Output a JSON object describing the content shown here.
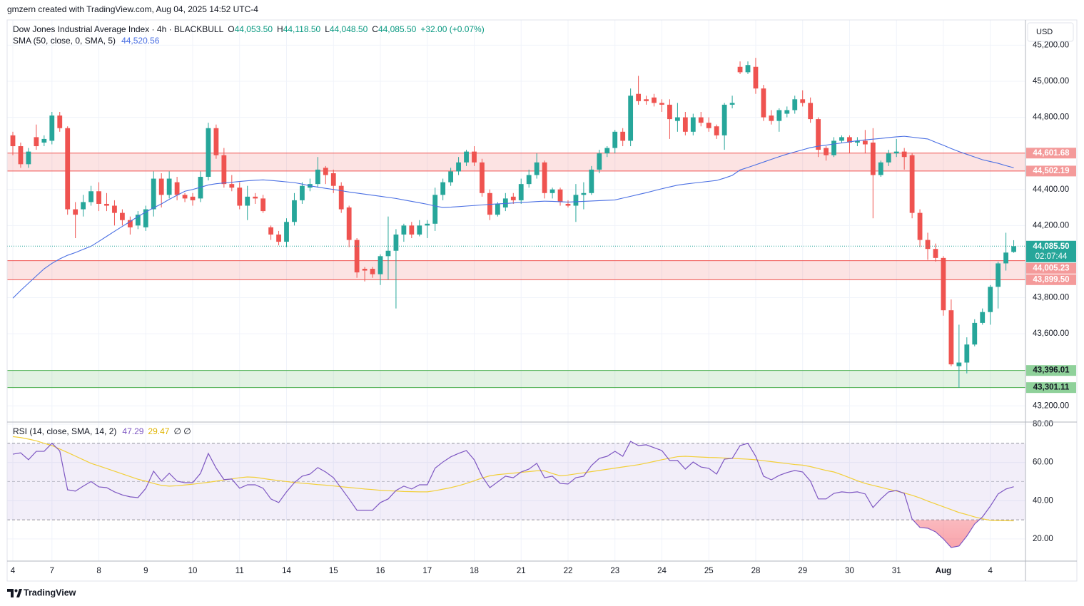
{
  "header": {
    "attribution": "gmzern created with TradingView.com, Aug 04, 2025 14:52 UTC-4",
    "currency": "USD"
  },
  "footer": {
    "brand": "TradingView"
  },
  "chart_data": [
    {
      "type": "candlestick",
      "legend": {
        "symbol": "Dow Jones Industrial Average Index · 4h · BLACKBULL",
        "ohlc": [
          {
            "key": "O",
            "value": "44,053.50"
          },
          {
            "key": "H",
            "value": "44,118.50"
          },
          {
            "key": "L",
            "value": "44,048.50"
          },
          {
            "key": "C",
            "value": "44,085.50"
          }
        ],
        "change": "+32.00 (+0.07%)"
      },
      "xlim": [
        -0.73,
        129.5
      ],
      "xticks": [
        {
          "value": 0,
          "label": "4"
        },
        {
          "value": 5,
          "label": "7"
        },
        {
          "value": 11,
          "label": "8"
        },
        {
          "value": 17,
          "label": "9"
        },
        {
          "value": 23,
          "label": "10"
        },
        {
          "value": 29,
          "label": "11"
        },
        {
          "value": 35,
          "label": "14"
        },
        {
          "value": 41,
          "label": "15"
        },
        {
          "value": 47,
          "label": "16"
        },
        {
          "value": 53,
          "label": "17"
        },
        {
          "value": 59,
          "label": "18"
        },
        {
          "value": 65,
          "label": "21"
        },
        {
          "value": 71,
          "label": "22"
        },
        {
          "value": 77,
          "label": "23"
        },
        {
          "value": 83,
          "label": "24"
        },
        {
          "value": 89,
          "label": "25"
        },
        {
          "value": 95,
          "label": "28"
        },
        {
          "value": 101,
          "label": "29"
        },
        {
          "value": 107,
          "label": "30"
        },
        {
          "value": 113,
          "label": "31"
        },
        {
          "value": 119,
          "label": "Aug"
        },
        {
          "value": 125,
          "label": "4"
        }
      ],
      "ylim": [
        43110,
        45340
      ],
      "yticks": [
        {
          "value": 45200,
          "label": "45,200.00"
        },
        {
          "value": 45000,
          "label": "45,000.00"
        },
        {
          "value": 44800,
          "label": "44,800.00"
        },
        {
          "value": 44400,
          "label": "44,400.00"
        },
        {
          "value": 44200,
          "label": "44,200.00"
        },
        {
          "value": 43800,
          "label": "43,800.00"
        },
        {
          "value": 43600,
          "label": "43,600.00"
        },
        {
          "value": 43200,
          "label": "43,200.00"
        }
      ],
      "grid": true,
      "up_color": "#26a69a",
      "down_color": "#ef5350",
      "open": [
        44700,
        44640,
        44540,
        44690,
        44660,
        44670,
        44810,
        44740,
        44290,
        44290,
        44330,
        44390,
        44320,
        44310,
        44270,
        44230,
        44200,
        44190,
        44290,
        44460,
        44370,
        44440,
        44370,
        44360,
        44350,
        44470,
        44740,
        44590,
        44430,
        44410,
        44310,
        44360,
        44350,
        44190,
        44150,
        44110,
        44220,
        44340,
        44410,
        44430,
        44520,
        44490,
        44420,
        44300,
        44120,
        43960,
        43960,
        43930,
        44030,
        44060,
        44150,
        44200,
        44150,
        44200,
        44210,
        44370,
        44440,
        44500,
        44550,
        44610,
        44550,
        44380,
        44260,
        44300,
        44360,
        44340,
        44430,
        44480,
        44550,
        44380,
        44400,
        44320,
        44310,
        44370,
        44380,
        44510,
        44600,
        44630,
        44720,
        44670,
        44930,
        44900,
        44910,
        44880,
        44870,
        44780,
        44800,
        44720,
        44800,
        44770,
        44750,
        44700,
        44870,
        45080,
        45050,
        45080,
        44960,
        44810,
        44780,
        44820,
        44840,
        44900,
        44880,
        44790,
        44630,
        44590,
        44670,
        44690,
        44660,
        44670,
        44660,
        44480,
        44550,
        44600,
        44610,
        44590,
        44270,
        44120,
        44070,
        44020,
        43730,
        43420,
        43440,
        43540,
        43660,
        43720,
        43860,
        43990,
        44053.5
      ],
      "high": [
        44720,
        44660,
        44630,
        44760,
        44700,
        44830,
        44830,
        44750,
        44330,
        44370,
        44420,
        44440,
        44380,
        44340,
        44290,
        44250,
        44280,
        44310,
        44500,
        44490,
        44500,
        44470,
        44380,
        44380,
        44500,
        44770,
        44760,
        44630,
        44480,
        44440,
        44420,
        44380,
        44370,
        44200,
        44170,
        44240,
        44380,
        44440,
        44460,
        44580,
        44530,
        44510,
        44440,
        44310,
        44130,
        43970,
        43970,
        44040,
        44250,
        44180,
        44210,
        44220,
        44230,
        44230,
        44410,
        44460,
        44520,
        44580,
        44620,
        44640,
        44570,
        44400,
        44330,
        44380,
        44380,
        44460,
        44510,
        44600,
        44560,
        44410,
        44410,
        44340,
        44430,
        44440,
        44530,
        44620,
        44640,
        44730,
        44740,
        44960,
        45030,
        44920,
        44930,
        44900,
        44900,
        44880,
        44830,
        44820,
        44830,
        44800,
        44760,
        44880,
        44920,
        45110,
        45110,
        45130,
        44980,
        44840,
        44850,
        44860,
        44920,
        44950,
        44910,
        44800,
        44640,
        44690,
        44700,
        44700,
        44690,
        44730,
        44740,
        44560,
        44620,
        44680,
        44630,
        44600,
        44290,
        44160,
        44100,
        44030,
        43790,
        43650,
        43580,
        43680,
        43740,
        43870,
        44000,
        44160,
        44118.5
      ],
      "low": [
        44590,
        44520,
        44520,
        44620,
        44640,
        44650,
        44720,
        44260,
        44130,
        44250,
        44310,
        44280,
        44280,
        44200,
        44200,
        44150,
        44180,
        44170,
        44250,
        44300,
        44350,
        44340,
        44330,
        44310,
        44330,
        44450,
        44570,
        44410,
        44390,
        44290,
        44230,
        44320,
        44270,
        44120,
        44090,
        44080,
        44200,
        44320,
        44390,
        44410,
        44430,
        44380,
        44270,
        44080,
        43910,
        43890,
        43910,
        43870,
        43900,
        43740,
        44110,
        44130,
        44140,
        44130,
        44170,
        44340,
        44420,
        44480,
        44530,
        44530,
        44360,
        44230,
        44250,
        44280,
        44320,
        44320,
        44410,
        44460,
        44350,
        44350,
        44310,
        44300,
        44220,
        44290,
        44370,
        44490,
        44580,
        44600,
        44640,
        44640,
        44870,
        44870,
        44860,
        44830,
        44680,
        44720,
        44700,
        44700,
        44750,
        44720,
        44680,
        44620,
        44850,
        45040,
        45040,
        44930,
        44780,
        44760,
        44720,
        44800,
        44820,
        44860,
        44770,
        44580,
        44560,
        44580,
        44660,
        44600,
        44640,
        44600,
        44240,
        44470,
        44530,
        44580,
        44510,
        44240,
        44080,
        44010,
        44000,
        43700,
        43420,
        43300,
        43380,
        43530,
        43650,
        43650,
        43740,
        43950,
        44048.5
      ],
      "close": [
        44640,
        44540,
        44610,
        44640,
        44680,
        44810,
        44740,
        44290,
        44260,
        44330,
        44390,
        44320,
        44310,
        44270,
        44230,
        44190,
        44260,
        44290,
        44460,
        44370,
        44460,
        44370,
        44350,
        44340,
        44470,
        44740,
        44590,
        44430,
        44410,
        44310,
        44360,
        44350,
        44280,
        44150,
        44110,
        44220,
        44340,
        44420,
        44430,
        44510,
        44480,
        44420,
        44290,
        44120,
        43940,
        43950,
        43930,
        44030,
        44060,
        44150,
        44200,
        44150,
        44200,
        44210,
        44370,
        44440,
        44500,
        44550,
        44610,
        44550,
        44380,
        44260,
        44320,
        44350,
        44340,
        44430,
        44480,
        44550,
        44380,
        44400,
        44330,
        44310,
        44370,
        44380,
        44510,
        44600,
        44630,
        44720,
        44670,
        44920,
        44890,
        44890,
        44880,
        44870,
        44790,
        44800,
        44720,
        44800,
        44770,
        44740,
        44700,
        44870,
        44880,
        45050,
        45090,
        44960,
        44800,
        44780,
        44840,
        44840,
        44900,
        44880,
        44790,
        44620,
        44590,
        44670,
        44690,
        44660,
        44670,
        44650,
        44480,
        44550,
        44600,
        44610,
        44580,
        44270,
        44120,
        44070,
        44020,
        43730,
        43430,
        43440,
        43540,
        43660,
        43720,
        43860,
        43990,
        44050,
        44085.5
      ],
      "sma": {
        "name": "SMA (50, close, 0, SMA, 5)",
        "legend_value": "44,520.56",
        "color": "#4a6fe3",
        "values": [
          43797,
          43840,
          43880,
          43920,
          43960,
          43990,
          44015,
          44035,
          44050,
          44068,
          44085,
          44112,
          44140,
          44168,
          44195,
          44222,
          44250,
          44275,
          44298,
          44320,
          44345,
          44368,
          44390,
          44400,
          44412,
          44425,
          44432,
          44436,
          44440,
          44444,
          44448,
          44451,
          44453,
          44450,
          44446,
          44442,
          44438,
          44430,
          44420,
          44413,
          44406,
          44400,
          44393,
          44386,
          44380,
          44374,
          44368,
          44362,
          44356,
          44350,
          44342,
          44334,
          44326,
          44318,
          44308,
          44300,
          44302,
          44305,
          44308,
          44311,
          44314,
          44317,
          44320,
          44322,
          44325,
          44328,
          44330,
          44333,
          44335,
          44334,
          44332,
          44330,
          44332,
          44334,
          44336,
          44338,
          44340,
          44342,
          44352,
          44362,
          44372,
          44382,
          44393,
          44404,
          44414,
          44424,
          44430,
          44435,
          44440,
          44445,
          44450,
          44463,
          44478,
          44508,
          44522,
          44537,
          44552,
          44567,
          44582,
          44596,
          44608,
          44620,
          44632,
          44640,
          44646,
          44652,
          44658,
          44664,
          44670,
          44675,
          44679,
          44683,
          44688,
          44692,
          44695,
          44690,
          44685,
          44680,
          44662,
          44645,
          44627,
          44610,
          44595,
          44580,
          44565,
          44555,
          44545,
          44532,
          44520.56
        ]
      },
      "zones": [
        {
          "values": [
            44601.68,
            44502.19
          ],
          "value_labels": [
            "44,601.68",
            "44,502.19"
          ],
          "color": "#ef5350",
          "label_color": "#f49a9a",
          "text_color": "#ffffff"
        },
        {
          "values": [
            44005.23,
            43899.5
          ],
          "value_labels": [
            "44,005.23",
            "43,899.50"
          ],
          "color": "#ef5350",
          "label_color": "#f49a9a",
          "text_color": "#ffffff"
        },
        {
          "values": [
            43396.01,
            43301.11
          ],
          "value_labels": [
            "43,396.01",
            "43,301.11"
          ],
          "color": "#4caf50",
          "label_color": "#8fd19a",
          "text_color": "#131722"
        }
      ],
      "last_price": {
        "value": 44085.5,
        "label": "44,085.50",
        "countdown": "02:07:44",
        "color": "#26a69a"
      }
    },
    {
      "type": "line",
      "ylim": [
        8.4,
        81.1
      ],
      "yticks": [
        {
          "value": 80,
          "label": "80.00"
        },
        {
          "value": 60,
          "label": "60.00"
        },
        {
          "value": 40,
          "label": "40.00"
        },
        {
          "value": 20,
          "label": "20.00"
        }
      ],
      "grid": true,
      "bands": [
        70,
        30
      ],
      "midline": 50,
      "band_color": "#7e57c2",
      "legend": {
        "extra": "∅ ∅"
      },
      "series": [
        {
          "name": "RSI (14, close, SMA, 14, 2)",
          "color": "#7e57c2",
          "values": [
            64.3,
            65,
            61.4,
            65.8,
            65.8,
            70,
            66,
            45.7,
            45,
            47.6,
            50,
            47.2,
            46.8,
            44.6,
            43,
            42,
            41.6,
            46.4,
            55.4,
            50.2,
            54.3,
            50.2,
            49.4,
            49.4,
            54.3,
            64.7,
            57,
            51,
            51.3,
            46.5,
            48.3,
            48.3,
            46.5,
            40.9,
            39,
            44.6,
            49.4,
            52.8,
            53.9,
            57.3,
            55,
            52,
            46.5,
            40.9,
            35,
            35,
            35,
            39,
            40.9,
            45.3,
            47.6,
            46.1,
            48.3,
            48.3,
            57,
            60.2,
            62.9,
            64.7,
            66.2,
            61.4,
            52.8,
            46.8,
            49.8,
            52.8,
            52,
            55,
            56.5,
            59.5,
            52,
            52.8,
            49,
            48.7,
            52,
            52.8,
            58.4,
            62.1,
            63.2,
            65.8,
            63.2,
            71,
            68.8,
            69.2,
            67.7,
            66.2,
            61,
            61,
            56.5,
            60.2,
            57.6,
            56.9,
            53.9,
            61.7,
            62.1,
            68.8,
            70,
            63.2,
            52.8,
            50.9,
            53.2,
            54.7,
            55.8,
            55,
            50.2,
            40.9,
            40.9,
            43.8,
            44.6,
            44.2,
            44.6,
            43.5,
            36.4,
            40.9,
            44.6,
            45.3,
            43.8,
            30.4,
            26,
            25.6,
            23.7,
            20,
            15.5,
            16.3,
            21.5,
            27.8,
            31.5,
            37.1,
            43.5,
            46.1,
            47.29
          ]
        },
        {
          "color": "#f2cf3a",
          "values": [
            73.5,
            73,
            72.2,
            71.3,
            70,
            68.8,
            67,
            65.2,
            63.3,
            61.4,
            59.5,
            58.2,
            56.8,
            55.4,
            54,
            52.6,
            51.2,
            50.2,
            49,
            48,
            47.6,
            47.8,
            48.2,
            48.6,
            49.1,
            49.6,
            50.2,
            50.8,
            51.4,
            52,
            52.4,
            52.2,
            51.6,
            51,
            50.5,
            50,
            49.5,
            49.1,
            48.8,
            48.4,
            48.1,
            47.7,
            47.3,
            46.9,
            46.5,
            46.1,
            45.8,
            45.4,
            45.2,
            45,
            44.8,
            44.7,
            44.6,
            44.6,
            45.2,
            46,
            46.8,
            47.8,
            49,
            50.4,
            51.8,
            53,
            53.6,
            54,
            54.4,
            54.8,
            55.2,
            55.6,
            55.6,
            54.2,
            53,
            53.4,
            54,
            54.6,
            55.2,
            55.8,
            56.4,
            57,
            57.6,
            58.2,
            58.8,
            59.6,
            60.5,
            61.4,
            62.2,
            63,
            63.2,
            63,
            62.8,
            62.6,
            62.5,
            62.3,
            62.1,
            61.9,
            61.7,
            61.4,
            60.9,
            60.4,
            59.9,
            59.4,
            58.9,
            58.6,
            57.8,
            56.8,
            55.8,
            55,
            53.6,
            52,
            50.4,
            49,
            48,
            47,
            46,
            45,
            44,
            42.8,
            41.4,
            39.8,
            38.3,
            36.8,
            35.3,
            33.8,
            32.7,
            31.5,
            30.5,
            29.7,
            29.6,
            29.5,
            29.47
          ]
        }
      ]
    }
  ]
}
